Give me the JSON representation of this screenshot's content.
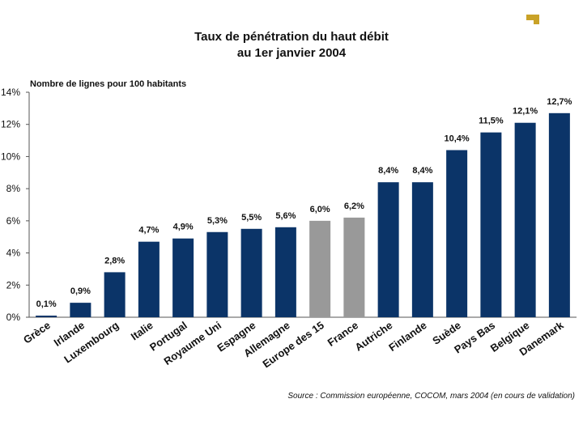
{
  "chart_data": {
    "type": "bar",
    "title": "Taux de pénétration du haut débit",
    "subtitle": "au 1er janvier 2004",
    "ylabel": "Nombre de lignes pour 100 habitants",
    "xlabel": "",
    "ylim": [
      0,
      14
    ],
    "ytick_values": [
      0,
      2,
      4,
      6,
      8,
      10,
      12,
      14
    ],
    "ytick_labels": [
      "0%",
      "2%",
      "4%",
      "6%",
      "8%",
      "10%",
      "12%",
      "14%"
    ],
    "grid": false,
    "legend": "none",
    "categories": [
      "Grèce",
      "Irlande",
      "Luxembourg",
      "Italie",
      "Portugal",
      "Royaume Uni",
      "Espagne",
      "Allemagne",
      "Europe des 15",
      "France",
      "Autriche",
      "Finlande",
      "Suède",
      "Pays Bas",
      "Belgique",
      "Danemark"
    ],
    "values": [
      0.1,
      0.9,
      2.8,
      4.7,
      4.9,
      5.3,
      5.5,
      5.6,
      6.0,
      6.2,
      8.4,
      8.4,
      10.4,
      11.5,
      12.1,
      12.7
    ],
    "value_labels": [
      "0,1%",
      "0,9%",
      "2,8%",
      "4,7%",
      "4,9%",
      "5,3%",
      "5,5%",
      "5,6%",
      "6,0%",
      "6,2%",
      "8,4%",
      "8,4%",
      "10,4%",
      "11,5%",
      "12,1%",
      "12,7%"
    ],
    "bar_colors": [
      "#0b3468",
      "#0b3468",
      "#0b3468",
      "#0b3468",
      "#0b3468",
      "#0b3468",
      "#0b3468",
      "#0b3468",
      "#999999",
      "#999999",
      "#0b3468",
      "#0b3468",
      "#0b3468",
      "#0b3468",
      "#0b3468",
      "#0b3468"
    ],
    "source": "Source : Commission européenne, COCOM, mars 2004 (en cours de validation)"
  },
  "colors": {
    "logo": "#c9a227",
    "axis": "#555555"
  }
}
